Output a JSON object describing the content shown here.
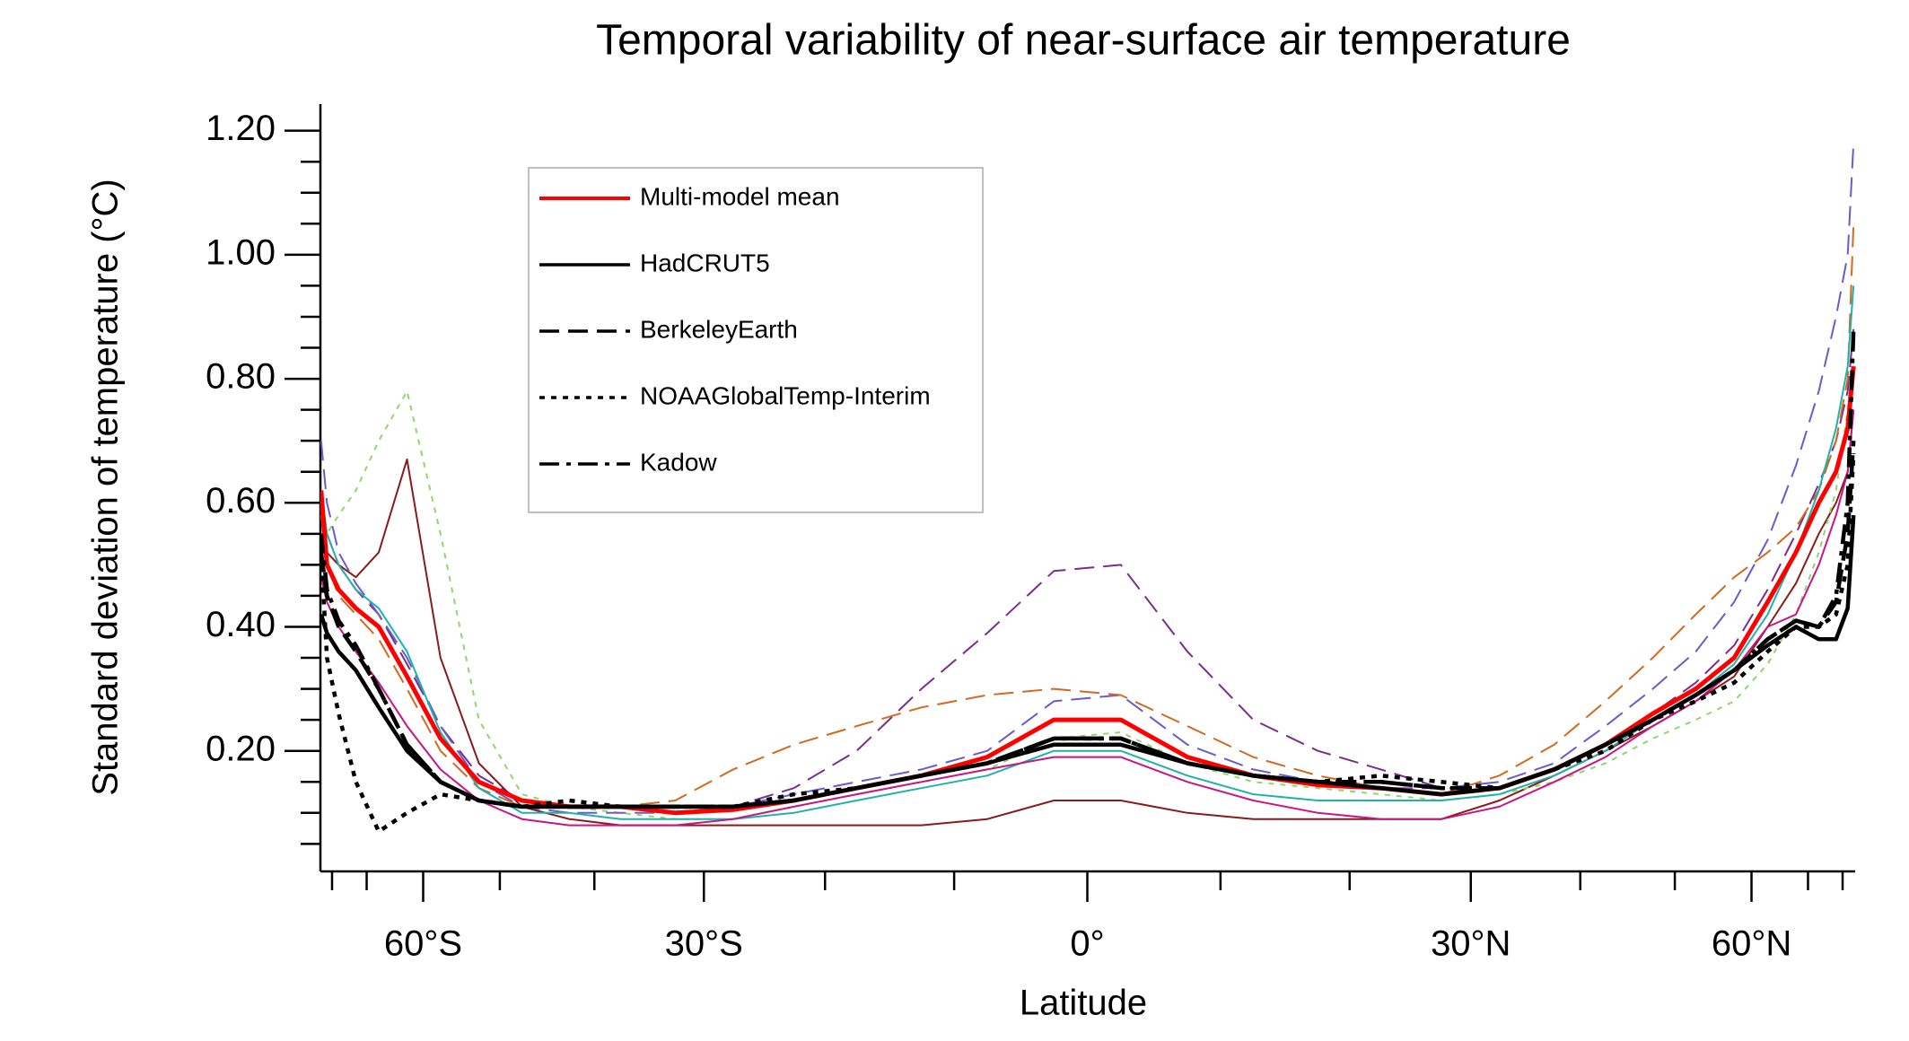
{
  "chart_data": {
    "type": "line",
    "title": "Temporal variability of near-surface air temperature",
    "x_label": "Latitude",
    "y_label": "Standard deviation of temperature (°C)",
    "xscale": "sine",
    "xlim": [
      -90,
      90
    ],
    "xticks": [
      {
        "value": -60,
        "label": "60°S"
      },
      {
        "value": -30,
        "label": "30°S"
      },
      {
        "value": 0,
        "label": "0°"
      },
      {
        "value": 30,
        "label": "30°N"
      },
      {
        "value": 60,
        "label": "60°N"
      }
    ],
    "xminorticks": [
      -80,
      -70,
      -50,
      -40,
      -20,
      -10,
      10,
      20,
      40,
      50,
      70,
      80
    ],
    "ylim": [
      0.01,
      1.24
    ],
    "yticks": [
      {
        "value": 0.2,
        "label": "0.20"
      },
      {
        "value": 0.4,
        "label": "0.40"
      },
      {
        "value": 0.6,
        "label": "0.60"
      },
      {
        "value": 0.8,
        "label": "0.80"
      },
      {
        "value": 1.0,
        "label": "1.00"
      },
      {
        "value": 1.2,
        "label": "1.20"
      }
    ],
    "yminorticks": [
      0.05,
      0.1,
      0.15,
      0.25,
      0.3,
      0.35,
      0.45,
      0.5,
      0.55,
      0.65,
      0.7,
      0.75,
      0.85,
      0.9,
      0.95,
      1.05,
      1.1,
      1.15
    ],
    "legend": "upper left",
    "x": [
      -87.5,
      -82.5,
      -77.5,
      -72.5,
      -67.5,
      -62.5,
      -57.5,
      -52.5,
      -47.5,
      -42.5,
      -37.5,
      -32.5,
      -27.5,
      -22.5,
      -17.5,
      -12.5,
      -7.5,
      -2.5,
      2.5,
      7.5,
      12.5,
      17.5,
      22.5,
      27.5,
      32.5,
      37.5,
      42.5,
      47.5,
      52.5,
      57.5,
      62.5,
      67.5,
      72.5,
      77.5,
      82.5,
      87.5
    ],
    "series": [
      {
        "color": "#7b2d8e",
        "dash": "dash",
        "width": 2,
        "values": [
          0.6,
          0.55,
          0.5,
          0.46,
          0.42,
          0.34,
          0.24,
          0.16,
          0.12,
          0.11,
          0.11,
          0.1,
          0.11,
          0.14,
          0.2,
          0.3,
          0.39,
          0.49,
          0.5,
          0.36,
          0.25,
          0.2,
          0.17,
          0.14,
          0.14,
          0.17,
          0.21,
          0.26,
          0.31,
          0.37,
          0.46,
          0.55,
          0.63,
          0.7,
          0.78,
          0.88
        ]
      },
      {
        "color": "#8b1a1a",
        "dash": "solid",
        "width": 2,
        "values": [
          0.55,
          0.52,
          0.5,
          0.48,
          0.52,
          0.67,
          0.35,
          0.18,
          0.11,
          0.09,
          0.08,
          0.08,
          0.08,
          0.08,
          0.08,
          0.08,
          0.09,
          0.12,
          0.12,
          0.1,
          0.09,
          0.09,
          0.09,
          0.09,
          0.12,
          0.16,
          0.2,
          0.24,
          0.28,
          0.32,
          0.4,
          0.47,
          0.55,
          0.6,
          0.65,
          0.75
        ]
      },
      {
        "color": "#8fd66b",
        "dash": "dot",
        "width": 2,
        "values": [
          0.5,
          0.55,
          0.58,
          0.62,
          0.7,
          0.78,
          0.55,
          0.25,
          0.13,
          0.11,
          0.1,
          0.09,
          0.09,
          0.11,
          0.13,
          0.15,
          0.17,
          0.22,
          0.23,
          0.18,
          0.15,
          0.14,
          0.13,
          0.12,
          0.13,
          0.15,
          0.18,
          0.22,
          0.25,
          0.28,
          0.34,
          0.42,
          0.52,
          0.62,
          0.75,
          0.85
        ]
      },
      {
        "color": "#6a5acd",
        "dash": "dash",
        "width": 2,
        "values": [
          0.7,
          0.6,
          0.52,
          0.47,
          0.42,
          0.35,
          0.24,
          0.15,
          0.11,
          0.1,
          0.1,
          0.1,
          0.11,
          0.13,
          0.15,
          0.17,
          0.2,
          0.28,
          0.29,
          0.21,
          0.17,
          0.15,
          0.14,
          0.14,
          0.15,
          0.18,
          0.24,
          0.3,
          0.36,
          0.44,
          0.54,
          0.66,
          0.78,
          0.9,
          1.0,
          1.18
        ]
      },
      {
        "color": "#d2691e",
        "dash": "dash",
        "width": 2,
        "values": [
          0.58,
          0.5,
          0.45,
          0.42,
          0.38,
          0.3,
          0.2,
          0.14,
          0.11,
          0.11,
          0.11,
          0.12,
          0.17,
          0.21,
          0.24,
          0.27,
          0.29,
          0.3,
          0.29,
          0.24,
          0.19,
          0.16,
          0.14,
          0.13,
          0.16,
          0.21,
          0.28,
          0.35,
          0.42,
          0.48,
          0.52,
          0.56,
          0.62,
          0.7,
          0.8,
          1.05
        ]
      },
      {
        "color": "#20b2aa",
        "dash": "solid",
        "width": 2,
        "values": [
          0.62,
          0.55,
          0.5,
          0.46,
          0.43,
          0.36,
          0.23,
          0.14,
          0.1,
          0.1,
          0.09,
          0.09,
          0.09,
          0.1,
          0.12,
          0.14,
          0.16,
          0.2,
          0.2,
          0.16,
          0.13,
          0.12,
          0.12,
          0.12,
          0.13,
          0.16,
          0.2,
          0.25,
          0.29,
          0.34,
          0.42,
          0.52,
          0.62,
          0.72,
          0.82,
          0.95
        ]
      },
      {
        "color": "#c71585",
        "dash": "solid",
        "width": 2,
        "values": [
          0.48,
          0.44,
          0.4,
          0.36,
          0.31,
          0.24,
          0.17,
          0.12,
          0.09,
          0.08,
          0.08,
          0.08,
          0.09,
          0.11,
          0.13,
          0.15,
          0.17,
          0.19,
          0.19,
          0.15,
          0.12,
          0.1,
          0.09,
          0.09,
          0.11,
          0.15,
          0.19,
          0.24,
          0.28,
          0.33,
          0.4,
          0.42,
          0.5,
          0.58,
          0.65,
          0.75
        ]
      },
      {
        "name": "Multi-model mean",
        "color": "#ff0000",
        "dash": "solid",
        "width": 5,
        "values": [
          0.62,
          0.5,
          0.46,
          0.43,
          0.4,
          0.32,
          0.22,
          0.15,
          0.12,
          0.11,
          0.11,
          0.1,
          0.105,
          0.12,
          0.14,
          0.16,
          0.19,
          0.25,
          0.25,
          0.19,
          0.16,
          0.145,
          0.14,
          0.13,
          0.14,
          0.17,
          0.21,
          0.26,
          0.3,
          0.35,
          0.44,
          0.52,
          0.6,
          0.65,
          0.72,
          0.82
        ]
      },
      {
        "name": "HadCRUT5",
        "color": "#000000",
        "dash": "solid",
        "width": 4.5,
        "values": [
          0.42,
          0.39,
          0.36,
          0.33,
          0.27,
          0.2,
          0.15,
          0.12,
          0.11,
          0.11,
          0.11,
          0.11,
          0.11,
          0.12,
          0.14,
          0.16,
          0.18,
          0.21,
          0.21,
          0.18,
          0.16,
          0.15,
          0.14,
          0.13,
          0.14,
          0.17,
          0.21,
          0.25,
          0.29,
          0.33,
          0.37,
          0.4,
          0.38,
          0.38,
          0.43,
          0.58
        ]
      },
      {
        "name": "BerkeleyEarth",
        "color": "#000000",
        "dash": "dash",
        "width": 4.5,
        "values": [
          0.52,
          0.45,
          0.4,
          0.36,
          0.3,
          0.21,
          0.15,
          0.12,
          0.11,
          0.11,
          0.11,
          0.11,
          0.11,
          0.12,
          0.14,
          0.16,
          0.18,
          0.22,
          0.22,
          0.18,
          0.16,
          0.15,
          0.15,
          0.14,
          0.14,
          0.17,
          0.21,
          0.25,
          0.29,
          0.33,
          0.38,
          0.41,
          0.4,
          0.44,
          0.55,
          0.7
        ]
      },
      {
        "name": "NOAAGlobalTemp-Interim",
        "color": "#000000",
        "dash": "dot",
        "width": 4.5,
        "values": [
          0.52,
          0.35,
          0.26,
          0.15,
          0.07,
          0.1,
          0.13,
          0.12,
          0.11,
          0.12,
          0.11,
          0.11,
          0.11,
          0.13,
          0.14,
          0.16,
          0.18,
          0.22,
          0.22,
          0.18,
          0.16,
          0.15,
          0.16,
          0.15,
          0.14,
          0.17,
          0.2,
          0.25,
          0.28,
          0.31,
          0.36,
          0.4,
          0.4,
          0.42,
          0.5,
          0.68
        ]
      },
      {
        "name": "Kadow",
        "color": "#000000",
        "dash": "dashdot",
        "width": 4.5,
        "values": [
          0.55,
          0.46,
          0.41,
          0.37,
          0.3,
          0.21,
          0.15,
          0.12,
          0.11,
          0.11,
          0.11,
          0.11,
          0.11,
          0.12,
          0.14,
          0.16,
          0.18,
          0.22,
          0.22,
          0.18,
          0.16,
          0.15,
          0.15,
          0.14,
          0.14,
          0.17,
          0.21,
          0.25,
          0.29,
          0.33,
          0.38,
          0.41,
          0.4,
          0.45,
          0.6,
          0.88
        ]
      }
    ]
  }
}
